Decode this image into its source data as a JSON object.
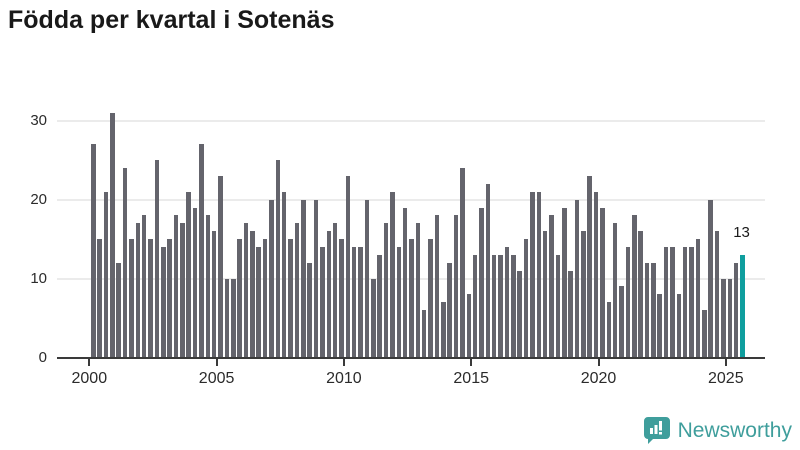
{
  "title": "Födda per kvartal i Sotenäs",
  "colors": {
    "bar": "#64646c",
    "highlight": "#0f9e9e",
    "brand": "#3f9e9c",
    "gridline": "#ebebeb",
    "axis": "#3a3a3a",
    "title_text": "#191919",
    "tick_text": "#2b2b2b"
  },
  "chart_data": {
    "type": "bar",
    "title": "Födda per kvartal i Sotenäs",
    "x_unit": "quarter",
    "x_range": [
      "2000Q1",
      "2025Q3"
    ],
    "ylim": [
      0,
      32
    ],
    "y_ticks": [
      0,
      10,
      20,
      30
    ],
    "x_tick_labels": [
      "2000",
      "2005",
      "2010",
      "2015",
      "2020",
      "2025"
    ],
    "grid": "horizontal",
    "legend": "none",
    "values": [
      27,
      15,
      21,
      31,
      12,
      24,
      15,
      17,
      18,
      15,
      25,
      14,
      15,
      18,
      17,
      21,
      19,
      27,
      18,
      16,
      23,
      10,
      10,
      15,
      17,
      16,
      14,
      15,
      20,
      25,
      21,
      15,
      17,
      20,
      12,
      20,
      14,
      16,
      17,
      15,
      23,
      14,
      14,
      20,
      10,
      13,
      17,
      21,
      14,
      19,
      15,
      17,
      6,
      15,
      18,
      7,
      12,
      18,
      24,
      8,
      13,
      19,
      22,
      13,
      13,
      14,
      13,
      11,
      15,
      21,
      21,
      16,
      18,
      13,
      19,
      11,
      20,
      16,
      23,
      21,
      19,
      7,
      17,
      9,
      14,
      18,
      16,
      12,
      12,
      8,
      14,
      14,
      8,
      14,
      14,
      15,
      6,
      20,
      16,
      10,
      10,
      12,
      13
    ],
    "highlight": {
      "index": 102,
      "label": "13"
    }
  },
  "footer": {
    "brand": "Newsworthy"
  }
}
